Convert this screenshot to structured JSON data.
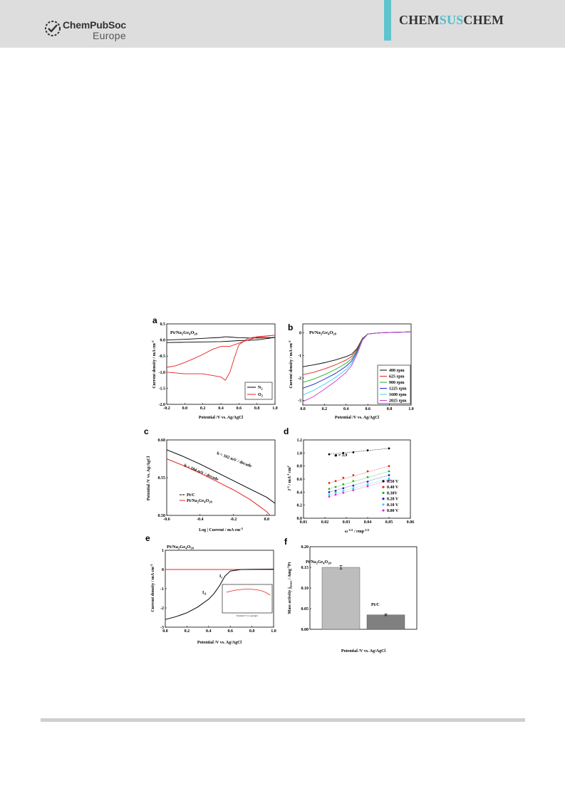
{
  "header": {
    "publisher_main": "ChemPubSoc",
    "publisher_sub": "Europe",
    "journal_part1": "CHEM",
    "journal_part2": "SUS",
    "journal_part3": "CHEM",
    "accent_color": "#5ec5cf",
    "header_bg": "#dddddd"
  },
  "figure": {
    "panels": {
      "a": {
        "label": "a",
        "sample_main": "Pt/Na",
        "sample_sub1": "2",
        "sample_mid": "Ge",
        "sample_sub2": "4",
        "sample_end": "O",
        "sample_sub3": "20",
        "xlabel": "Potential /V vs. Ag/AgCl",
        "ylabel": "Current density / mA cm",
        "ylabel_sup": "-2",
        "xticks": [
          "-0.2",
          "0.0",
          "0.2",
          "0.4",
          "0.6",
          "0.8",
          "1.0"
        ],
        "yticks": [
          "-2.0",
          "-1.5",
          "-1.0",
          "-0.5",
          "0.0",
          "0.5"
        ],
        "legend": [
          {
            "name": "N",
            "sub": "2",
            "color": "#000000"
          },
          {
            "name": "O",
            "sub": "2",
            "color": "#e8211f"
          }
        ]
      },
      "b": {
        "label": "b",
        "sample_main": "Pt/Na",
        "sample_sub1": "2",
        "sample_mid": "Ge",
        "sample_sub2": "4",
        "sample_end": "O",
        "sample_sub3": "20",
        "xlabel": "Potential /V vs. Ag/AgCl",
        "ylabel": "Current density / mA cm",
        "ylabel_sup": "-2",
        "xticks": [
          "0.0",
          "0.2",
          "0.4",
          "0.6",
          "0.8",
          "1.0"
        ],
        "yticks": [
          "0",
          "-1",
          "-2",
          "-3"
        ],
        "legend": [
          {
            "name": "400 rpm",
            "color": "#000000"
          },
          {
            "name": "625 rpm",
            "color": "#e8211f"
          },
          {
            "name": "900 rpm",
            "color": "#19b51c"
          },
          {
            "name": "1225 rpm",
            "color": "#1c23c7"
          },
          {
            "name": "1600 rpm",
            "color": "#34d3e8"
          },
          {
            "name": "2025 rpm",
            "color": "#d62fd0"
          }
        ]
      },
      "c": {
        "label": "c",
        "xlabel": "Log | Current  / mA cm",
        "xlabel_sup": "-2",
        "ylabel": "Potential /V vs. Ag/AgCl",
        "xticks": [
          "-0.6",
          "-0.4",
          "-0.2",
          "0.0"
        ],
        "yticks": [
          "0.60",
          "0.55",
          "0.50"
        ],
        "annotation_1": "b = 102 mV / decade",
        "annotation_2": "b = 104 mV / decade",
        "legend": [
          {
            "name": "Pt/C",
            "color": "#000000"
          },
          {
            "name": "Pt/Na",
            "sub1": "2",
            "mid": "Ge",
            "sub2": "4",
            "end": "O",
            "sub3": "20",
            "color": "#e8211f"
          }
        ]
      },
      "d": {
        "label": "d",
        "xlabel": "ω",
        "xlabel_sup": "-1/2",
        "xlabel_end": " / rmp",
        "xlabel_end_sup": "-1/2",
        "ylabel": "J",
        "ylabel_sup": "-1",
        "ylabel_end": " / mA",
        "ylabel_end_sup": "-1",
        "ylabel_tail": "cm",
        "ylabel_tail_sup": "2",
        "xticks": [
          "0.01",
          "0.02",
          "0.03",
          "0.04",
          "0.05",
          "0.06"
        ],
        "yticks": [
          "0.0",
          "0.2",
          "0.4",
          "0.6",
          "0.8",
          "1.0",
          "1.2"
        ],
        "annotation": "n = 3.9",
        "legend": [
          {
            "name": "0.50 V",
            "color": "#000000"
          },
          {
            "name": "0.40 V",
            "color": "#e8211f"
          },
          {
            "name": "0.30V",
            "color": "#19b51c"
          },
          {
            "name": "0.20 V",
            "color": "#1c23c7"
          },
          {
            "name": "0.10 V",
            "color": "#34d3e8"
          },
          {
            "name": "0.00 V",
            "color": "#d62fd0"
          }
        ]
      },
      "e": {
        "label": "e",
        "sample_main": "Pt/Na",
        "sample_sub1": "2",
        "sample_mid": "Ge",
        "sample_sub2": "4",
        "sample_end": "O",
        "sample_sub3": "20",
        "xlabel": "Potential /V vs. Ag/AgCl",
        "ylabel": "Current density / mA cm",
        "ylabel_sup": "-2",
        "xticks": [
          "0.0",
          "0.2",
          "0.4",
          "0.6",
          "0.8",
          "1.0"
        ],
        "yticks": [
          "1",
          "0",
          "-1",
          "-2",
          "-3"
        ],
        "ring_label": "I",
        "ring_sub": "r",
        "disk_label": "I",
        "disk_sub": "d",
        "inset_xlabel": "Potential /V vs. Ag/AgCl"
      },
      "f": {
        "label": "f",
        "xlabel": "Potential /V vs. Ag/AgCl",
        "ylabel": "Mass activity j",
        "ylabel_sub": "mass",
        "ylabel_end": " / Amg",
        "ylabel_sup": "-1",
        "ylabel_tail": "Pt",
        "yticks": [
          "0.00",
          "0.05",
          "0.10",
          "0.15",
          "0.20"
        ],
        "bar1_label_main": "Pt/Na",
        "bar1_sub1": "2",
        "bar1_mid": "Ge",
        "bar1_sub2": "4",
        "bar1_end": "O",
        "bar1_sub3": "20",
        "bar2_label": "Pt/C"
      }
    }
  },
  "chart_data": [
    {
      "type": "line",
      "panel": "a",
      "xlabel": "Potential /V vs. Ag/AgCl",
      "ylabel": "Current density / mA cm-2",
      "xlim": [
        -0.2,
        1.0
      ],
      "ylim": [
        -2.0,
        0.5
      ],
      "series": [
        {
          "name": "N2",
          "x": [
            -0.2,
            0.0,
            0.2,
            0.4,
            0.45,
            0.5,
            0.6,
            0.8,
            1.0,
            0.8,
            0.6,
            0.4,
            0.2,
            0.0,
            -0.2
          ],
          "y": [
            0.0,
            0.02,
            0.05,
            0.08,
            0.1,
            0.09,
            0.07,
            0.06,
            0.08,
            0.0,
            -0.02,
            -0.05,
            -0.06,
            -0.07,
            -0.08
          ]
        },
        {
          "name": "O2",
          "x": [
            -0.2,
            0.0,
            0.2,
            0.3,
            0.4,
            0.45,
            0.5,
            0.55,
            0.6,
            0.7,
            0.8,
            1.0,
            0.8,
            0.7,
            0.6,
            0.5,
            0.4,
            0.3,
            0.2,
            0.1,
            0.0,
            -0.1,
            -0.2
          ],
          "y": [
            -1.0,
            -1.05,
            -1.05,
            -1.1,
            -1.15,
            -1.25,
            -1.0,
            -0.55,
            -0.15,
            0.05,
            0.1,
            0.15,
            0.08,
            0.0,
            -0.1,
            -0.2,
            -0.2,
            -0.3,
            -0.45,
            -0.58,
            -0.7,
            -0.8,
            -0.85
          ]
        }
      ]
    },
    {
      "type": "line",
      "panel": "b",
      "xlabel": "Potential /V vs. Ag/AgCl",
      "ylabel": "Current density / mA cm-2",
      "xlim": [
        0.0,
        1.0
      ],
      "ylim": [
        -3.2,
        0.4
      ],
      "x": [
        0.0,
        0.1,
        0.2,
        0.3,
        0.4,
        0.45,
        0.5,
        0.55,
        0.6,
        0.7,
        0.8,
        0.9,
        1.0
      ],
      "series": [
        {
          "name": "400 rpm",
          "values": [
            -1.5,
            -1.42,
            -1.32,
            -1.2,
            -1.05,
            -0.95,
            -0.7,
            -0.25,
            -0.05,
            0.0,
            0.02,
            0.03,
            0.05
          ]
        },
        {
          "name": "625 rpm",
          "values": [
            -1.85,
            -1.75,
            -1.6,
            -1.42,
            -1.2,
            -1.05,
            -0.75,
            -0.27,
            -0.05,
            0.0,
            0.02,
            0.03,
            0.05
          ]
        },
        {
          "name": "900 rpm",
          "values": [
            -2.2,
            -2.05,
            -1.85,
            -1.62,
            -1.35,
            -1.15,
            -0.8,
            -0.28,
            -0.05,
            0.0,
            0.02,
            0.03,
            0.05
          ]
        },
        {
          "name": "1225 rpm",
          "values": [
            -2.45,
            -2.28,
            -2.05,
            -1.8,
            -1.48,
            -1.25,
            -0.85,
            -0.3,
            -0.05,
            0.0,
            0.02,
            0.03,
            0.05
          ]
        },
        {
          "name": "1600 rpm",
          "values": [
            -2.75,
            -2.55,
            -2.28,
            -1.98,
            -1.62,
            -1.35,
            -0.9,
            -0.32,
            -0.05,
            0.0,
            0.02,
            0.03,
            0.05
          ]
        },
        {
          "name": "2025 rpm",
          "values": [
            -3.05,
            -2.82,
            -2.5,
            -2.15,
            -1.75,
            -1.45,
            -0.95,
            -0.33,
            -0.05,
            0.0,
            0.02,
            0.03,
            0.05
          ]
        }
      ]
    },
    {
      "type": "line",
      "panel": "c",
      "xlabel": "Log | Current / mA cm-2",
      "ylabel": "Potential /V vs. Ag/AgCl",
      "xlim": [
        -0.6,
        0.05
      ],
      "ylim": [
        0.5,
        0.6
      ],
      "series": [
        {
          "name": "Pt/C",
          "x": [
            -0.6,
            -0.5,
            -0.4,
            -0.3,
            -0.2,
            -0.1,
            0.0,
            0.05
          ],
          "y": [
            0.587,
            0.578,
            0.568,
            0.557,
            0.546,
            0.535,
            0.524,
            0.516
          ]
        },
        {
          "name": "Pt/Na2Ge4O20",
          "x": [
            -0.6,
            -0.5,
            -0.4,
            -0.3,
            -0.2,
            -0.1,
            -0.05,
            0.0,
            0.02
          ],
          "y": [
            0.575,
            0.566,
            0.556,
            0.545,
            0.534,
            0.521,
            0.513,
            0.505,
            0.5
          ]
        }
      ]
    },
    {
      "type": "scatter",
      "panel": "d",
      "xlabel": "ω-1/2 / rmp-1/2",
      "ylabel": "J-1 / mA-1 cm2",
      "xlim": [
        0.01,
        0.06
      ],
      "ylim": [
        0.0,
        1.2
      ],
      "x": [
        0.022,
        0.025,
        0.0286,
        0.0333,
        0.04,
        0.05
      ],
      "series": [
        {
          "name": "0.50 V",
          "values": [
            0.98,
            0.96,
            1.0,
            1.01,
            1.04,
            1.07
          ]
        },
        {
          "name": "0.40 V",
          "values": [
            0.54,
            0.57,
            0.62,
            0.66,
            0.72,
            0.8
          ]
        },
        {
          "name": "0.30V",
          "values": [
            0.45,
            0.48,
            0.52,
            0.57,
            0.63,
            0.72
          ]
        },
        {
          "name": "0.20 V",
          "values": [
            0.4,
            0.42,
            0.46,
            0.5,
            0.56,
            0.66
          ]
        },
        {
          "name": "0.10 V",
          "values": [
            0.36,
            0.39,
            0.42,
            0.46,
            0.52,
            0.61
          ]
        },
        {
          "name": "0.00 V",
          "values": [
            0.33,
            0.36,
            0.39,
            0.43,
            0.49,
            0.58
          ]
        }
      ],
      "annotations": [
        "n = 3.9"
      ]
    },
    {
      "type": "line",
      "panel": "e",
      "xlabel": "Potential /V vs. Ag/AgCl",
      "ylabel": "Current density / mA cm-2",
      "xlim": [
        0.0,
        1.0
      ],
      "ylim": [
        -3.0,
        1.0
      ],
      "series": [
        {
          "name": "Ir",
          "x": [
            0.0,
            0.2,
            0.4,
            0.6,
            0.8,
            1.0
          ],
          "y": [
            0.0,
            0.0,
            0.0,
            0.0,
            0.0,
            0.0
          ]
        },
        {
          "name": "Id",
          "x": [
            0.0,
            0.1,
            0.2,
            0.3,
            0.4,
            0.45,
            0.5,
            0.55,
            0.6,
            0.7,
            0.8,
            1.0
          ],
          "y": [
            -2.6,
            -2.45,
            -2.25,
            -1.95,
            -1.55,
            -1.25,
            -0.85,
            -0.35,
            -0.08,
            0.0,
            0.01,
            0.02
          ]
        }
      ]
    },
    {
      "type": "bar",
      "panel": "f",
      "categories": [
        "Pt/Na2Ge4O20",
        "Pt/C"
      ],
      "values": [
        0.15,
        0.035
      ],
      "errors": [
        0.004,
        0.002
      ],
      "ylabel": "Mass activity jmass / Amg-1Pt",
      "xlabel": "Potential /V vs. Ag/AgCl",
      "ylim": [
        0.0,
        0.2
      ]
    }
  ]
}
